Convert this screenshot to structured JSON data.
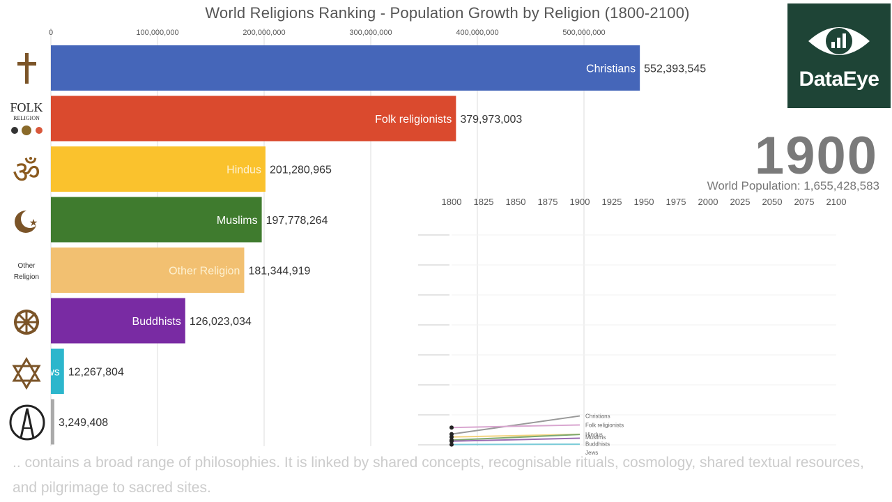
{
  "title": "World Religions Ranking - Population Growth by Religion (1800-2100)",
  "logo": {
    "brand": "DataEye",
    "icon": "eye-chart-icon"
  },
  "year": "1900",
  "world_population_label": "World Population: 1,655,428,583",
  "caption": ".. contains a broad range of philosophies. It is linked by shared concepts, recognisable rituals, cosmology, shared textual resources, and pilgrimage to sacred sites.",
  "icons": {
    "folk_line1": "FOLK",
    "folk_line2": "RELIGION",
    "other_line1": "Other",
    "other_line2": "Religion"
  },
  "chart_data": [
    {
      "type": "bar",
      "orientation": "horizontal",
      "title": "World Religions Ranking - Population Growth by Religion (1800-2100)",
      "xlim": [
        0,
        550000000
      ],
      "ticks": [
        0,
        100000000,
        200000000,
        300000000,
        400000000,
        500000000
      ],
      "tick_labels": [
        "0",
        "100,000,000",
        "200,000,000",
        "300,000,000",
        "400,000,000",
        "500,000,000"
      ],
      "categories": [
        "Christians",
        "Folk religionists",
        "Hindus",
        "Muslims",
        "Other Religion",
        "Buddhists",
        "Jews",
        ""
      ],
      "values": [
        552393545,
        379973003,
        201280965,
        197778264,
        181344919,
        126023034,
        12267804,
        3249408
      ],
      "value_labels": [
        "552,393,545",
        "379,973,003",
        "201,280,965",
        "197,778,264",
        "181,344,919",
        "126,023,034",
        "12,267,804",
        "3,249,408"
      ],
      "colors": [
        "#4566b9",
        "#da4a2e",
        "#fac22d",
        "#3f7b2e",
        "#f2c071",
        "#792ba3",
        "#2cb6cc",
        "#aaaaaa"
      ],
      "icon_names": [
        "christian-cross-icon",
        "folk-religion-icon",
        "om-icon",
        "crescent-star-icon",
        "other-religion-icon",
        "dharma-wheel-icon",
        "star-of-david-icon",
        "atheism-symbol-icon"
      ]
    },
    {
      "type": "line",
      "x_tick_labels": [
        "1800",
        "1825",
        "1850",
        "1875",
        "1900",
        "1925",
        "1950",
        "1975",
        "2000",
        "2025",
        "2050",
        "2075",
        "2100"
      ],
      "series": [
        {
          "name": "Christians",
          "color": "#999999",
          "x": [
            1800,
            1900
          ],
          "values": [
            205000000,
            552393545
          ]
        },
        {
          "name": "Folk religionists",
          "color": "#d9a6d0",
          "x": [
            1800,
            1900
          ],
          "values": [
            330000000,
            379973003
          ]
        },
        {
          "name": "Hindus",
          "color": "#f3d37f",
          "x": [
            1800,
            1900
          ],
          "values": [
            150000000,
            201280965
          ]
        },
        {
          "name": "Muslims",
          "color": "#7da870",
          "x": [
            1800,
            1900
          ],
          "values": [
            90000000,
            197778264
          ]
        },
        {
          "name": "Buddhists",
          "color": "#9a6cb3",
          "x": [
            1800,
            1900
          ],
          "values": [
            70000000,
            126023034
          ]
        },
        {
          "name": "Jews",
          "color": "#7acbd8",
          "x": [
            1800,
            1900
          ],
          "values": [
            5000000,
            12267804
          ]
        }
      ]
    }
  ]
}
